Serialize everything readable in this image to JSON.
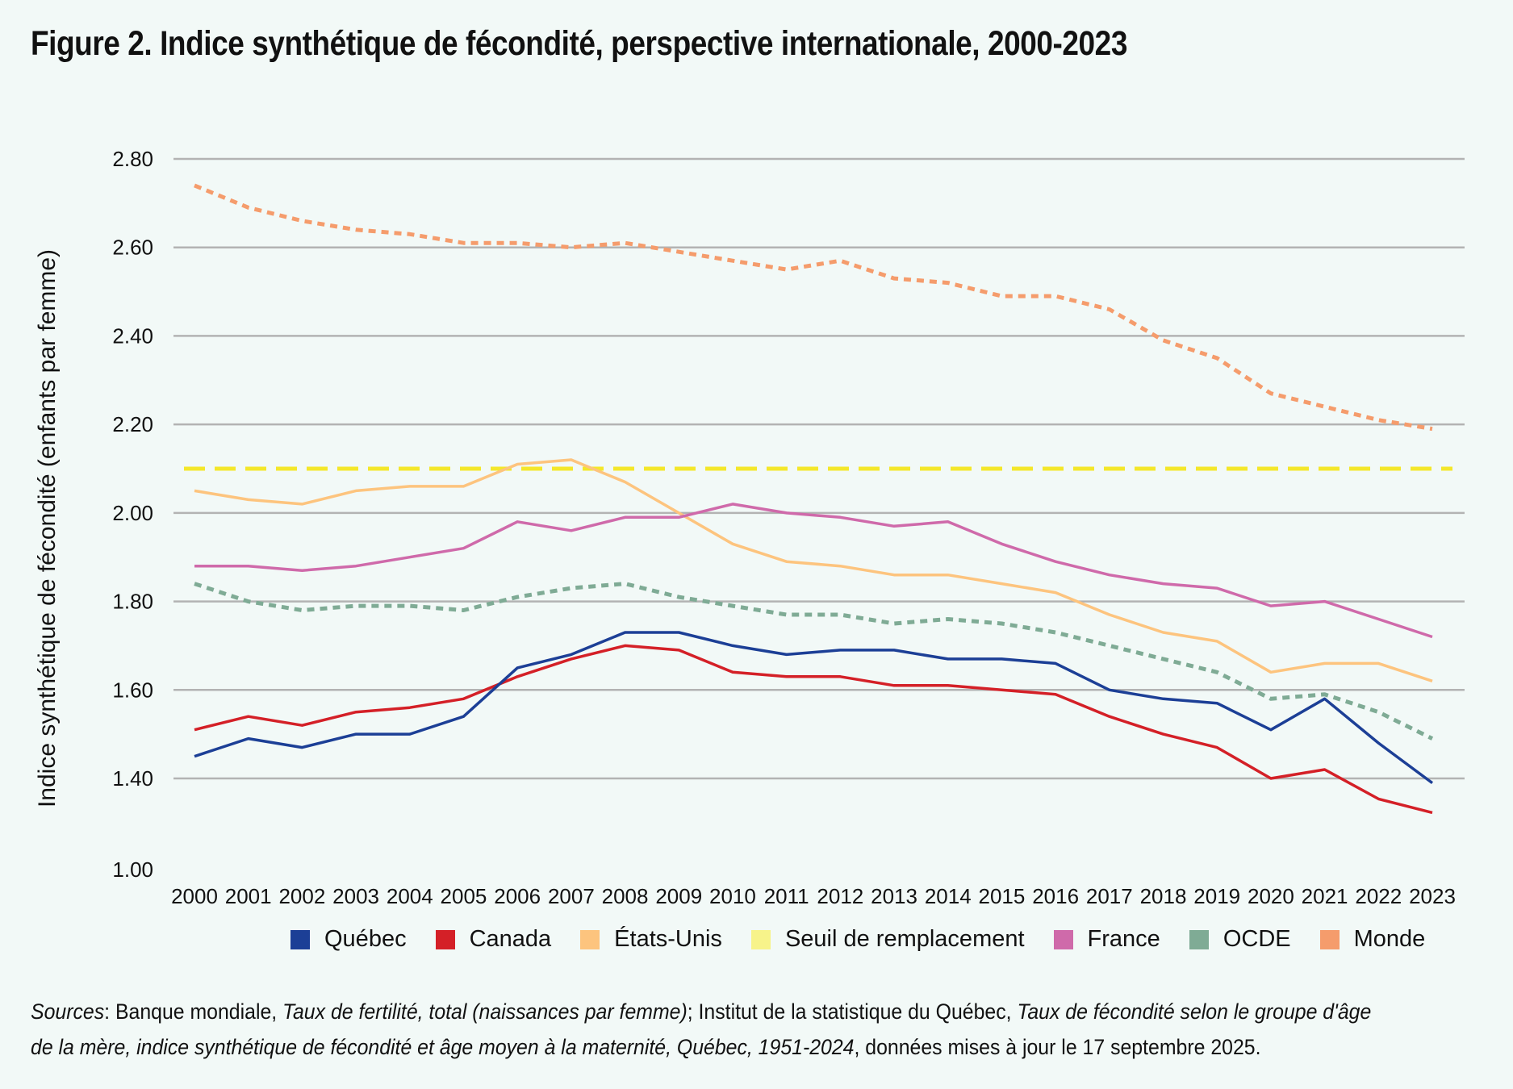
{
  "title": "Figure 2. Indice synthétique de fécondité, perspective internationale, 2000-2023",
  "chart_data": {
    "type": "line",
    "title": "Figure 2. Indice synthétique de fécondité, perspective internationale, 2000-2023",
    "xlabel": "",
    "ylabel": "Indice synthétique de fécondité (enfants par femme)",
    "ylim": [
      1.0,
      2.8
    ],
    "yticks": [
      "1.00",
      "1.40",
      "1.60",
      "1.80",
      "2.00",
      "2.20",
      "2.40",
      "2.60",
      "2.80"
    ],
    "grid": true,
    "legend_position": "bottom",
    "categories": [
      "2000",
      "2001",
      "2002",
      "2003",
      "2004",
      "2005",
      "2006",
      "2007",
      "2008",
      "2009",
      "2010",
      "2011",
      "2012",
      "2013",
      "2014",
      "2015",
      "2016",
      "2017",
      "2018",
      "2019",
      "2020",
      "2021",
      "2022",
      "2023"
    ],
    "series": [
      {
        "name": "Québec",
        "color": "#1c3f96",
        "dashed": false,
        "values": [
          1.45,
          1.49,
          1.47,
          1.5,
          1.5,
          1.54,
          1.65,
          1.68,
          1.73,
          1.73,
          1.7,
          1.68,
          1.69,
          1.69,
          1.67,
          1.67,
          1.66,
          1.6,
          1.58,
          1.57,
          1.51,
          1.58,
          1.48,
          1.38
        ]
      },
      {
        "name": "Canada",
        "color": "#d42027",
        "dashed": false,
        "values": [
          1.51,
          1.54,
          1.52,
          1.55,
          1.56,
          1.58,
          1.63,
          1.67,
          1.7,
          1.69,
          1.64,
          1.63,
          1.63,
          1.61,
          1.61,
          1.6,
          1.59,
          1.54,
          1.5,
          1.47,
          1.4,
          1.42,
          1.31,
          1.25
        ]
      },
      {
        "name": "États-Unis",
        "color": "#fdc47e",
        "dashed": false,
        "values": [
          2.05,
          2.03,
          2.02,
          2.05,
          2.06,
          2.06,
          2.11,
          2.12,
          2.07,
          2.0,
          1.93,
          1.89,
          1.88,
          1.86,
          1.86,
          1.84,
          1.82,
          1.77,
          1.73,
          1.71,
          1.64,
          1.66,
          1.66,
          1.62
        ]
      },
      {
        "name": "Seuil de remplacement",
        "color": "#f4e72a",
        "dashed": true,
        "dasharray": "26 12",
        "values": [
          2.1,
          2.1,
          2.1,
          2.1,
          2.1,
          2.1,
          2.1,
          2.1,
          2.1,
          2.1,
          2.1,
          2.1,
          2.1,
          2.1,
          2.1,
          2.1,
          2.1,
          2.1,
          2.1,
          2.1,
          2.1,
          2.1,
          2.1,
          2.1
        ]
      },
      {
        "name": "France",
        "color": "#cf6aaa",
        "dashed": false,
        "values": [
          1.88,
          1.88,
          1.87,
          1.88,
          1.9,
          1.92,
          1.98,
          1.96,
          1.99,
          1.99,
          2.02,
          2.0,
          1.99,
          1.97,
          1.98,
          1.93,
          1.89,
          1.86,
          1.84,
          1.83,
          1.79,
          1.8,
          1.76,
          1.72
        ]
      },
      {
        "name": "OCDE",
        "color": "#7fab95",
        "dashed": true,
        "dasharray": "9 7",
        "values": [
          1.84,
          1.8,
          1.78,
          1.79,
          1.79,
          1.78,
          1.81,
          1.83,
          1.84,
          1.81,
          1.79,
          1.77,
          1.77,
          1.75,
          1.76,
          1.75,
          1.73,
          1.7,
          1.67,
          1.64,
          1.58,
          1.59,
          1.55,
          1.49
        ]
      },
      {
        "name": "Monde",
        "color": "#f59c6c",
        "dashed": true,
        "dasharray": "9 7",
        "values": [
          2.74,
          2.69,
          2.66,
          2.64,
          2.63,
          2.61,
          2.61,
          2.6,
          2.61,
          2.59,
          2.57,
          2.55,
          2.57,
          2.53,
          2.52,
          2.49,
          2.49,
          2.46,
          2.39,
          2.35,
          2.27,
          2.24,
          2.21,
          2.19
        ]
      }
    ]
  },
  "legend": [
    {
      "label": "Québec",
      "color": "#1c3f96"
    },
    {
      "label": "Canada",
      "color": "#d42027"
    },
    {
      "label": "États-Unis",
      "color": "#fdc47e"
    },
    {
      "label": "Seuil de remplacement",
      "color": "#f7f38a"
    },
    {
      "label": "France",
      "color": "#cf6aaa"
    },
    {
      "label": "OCDE",
      "color": "#7fab95"
    },
    {
      "label": "Monde",
      "color": "#f59c6c"
    }
  ],
  "sources": {
    "label": "Sources",
    "p1": ": Banque mondiale, ",
    "i1": "Taux de fertilité, total (naissances par femme)",
    "p2": "; Institut de la statistique du Québec, ",
    "i2": "Taux de fécondité selon le groupe d'âge de la mère, indice synthétique de fécondité et âge moyen à la maternité, Québec, 1951-2024",
    "p3": ", données mises à jour le 17 septembre 2025."
  }
}
